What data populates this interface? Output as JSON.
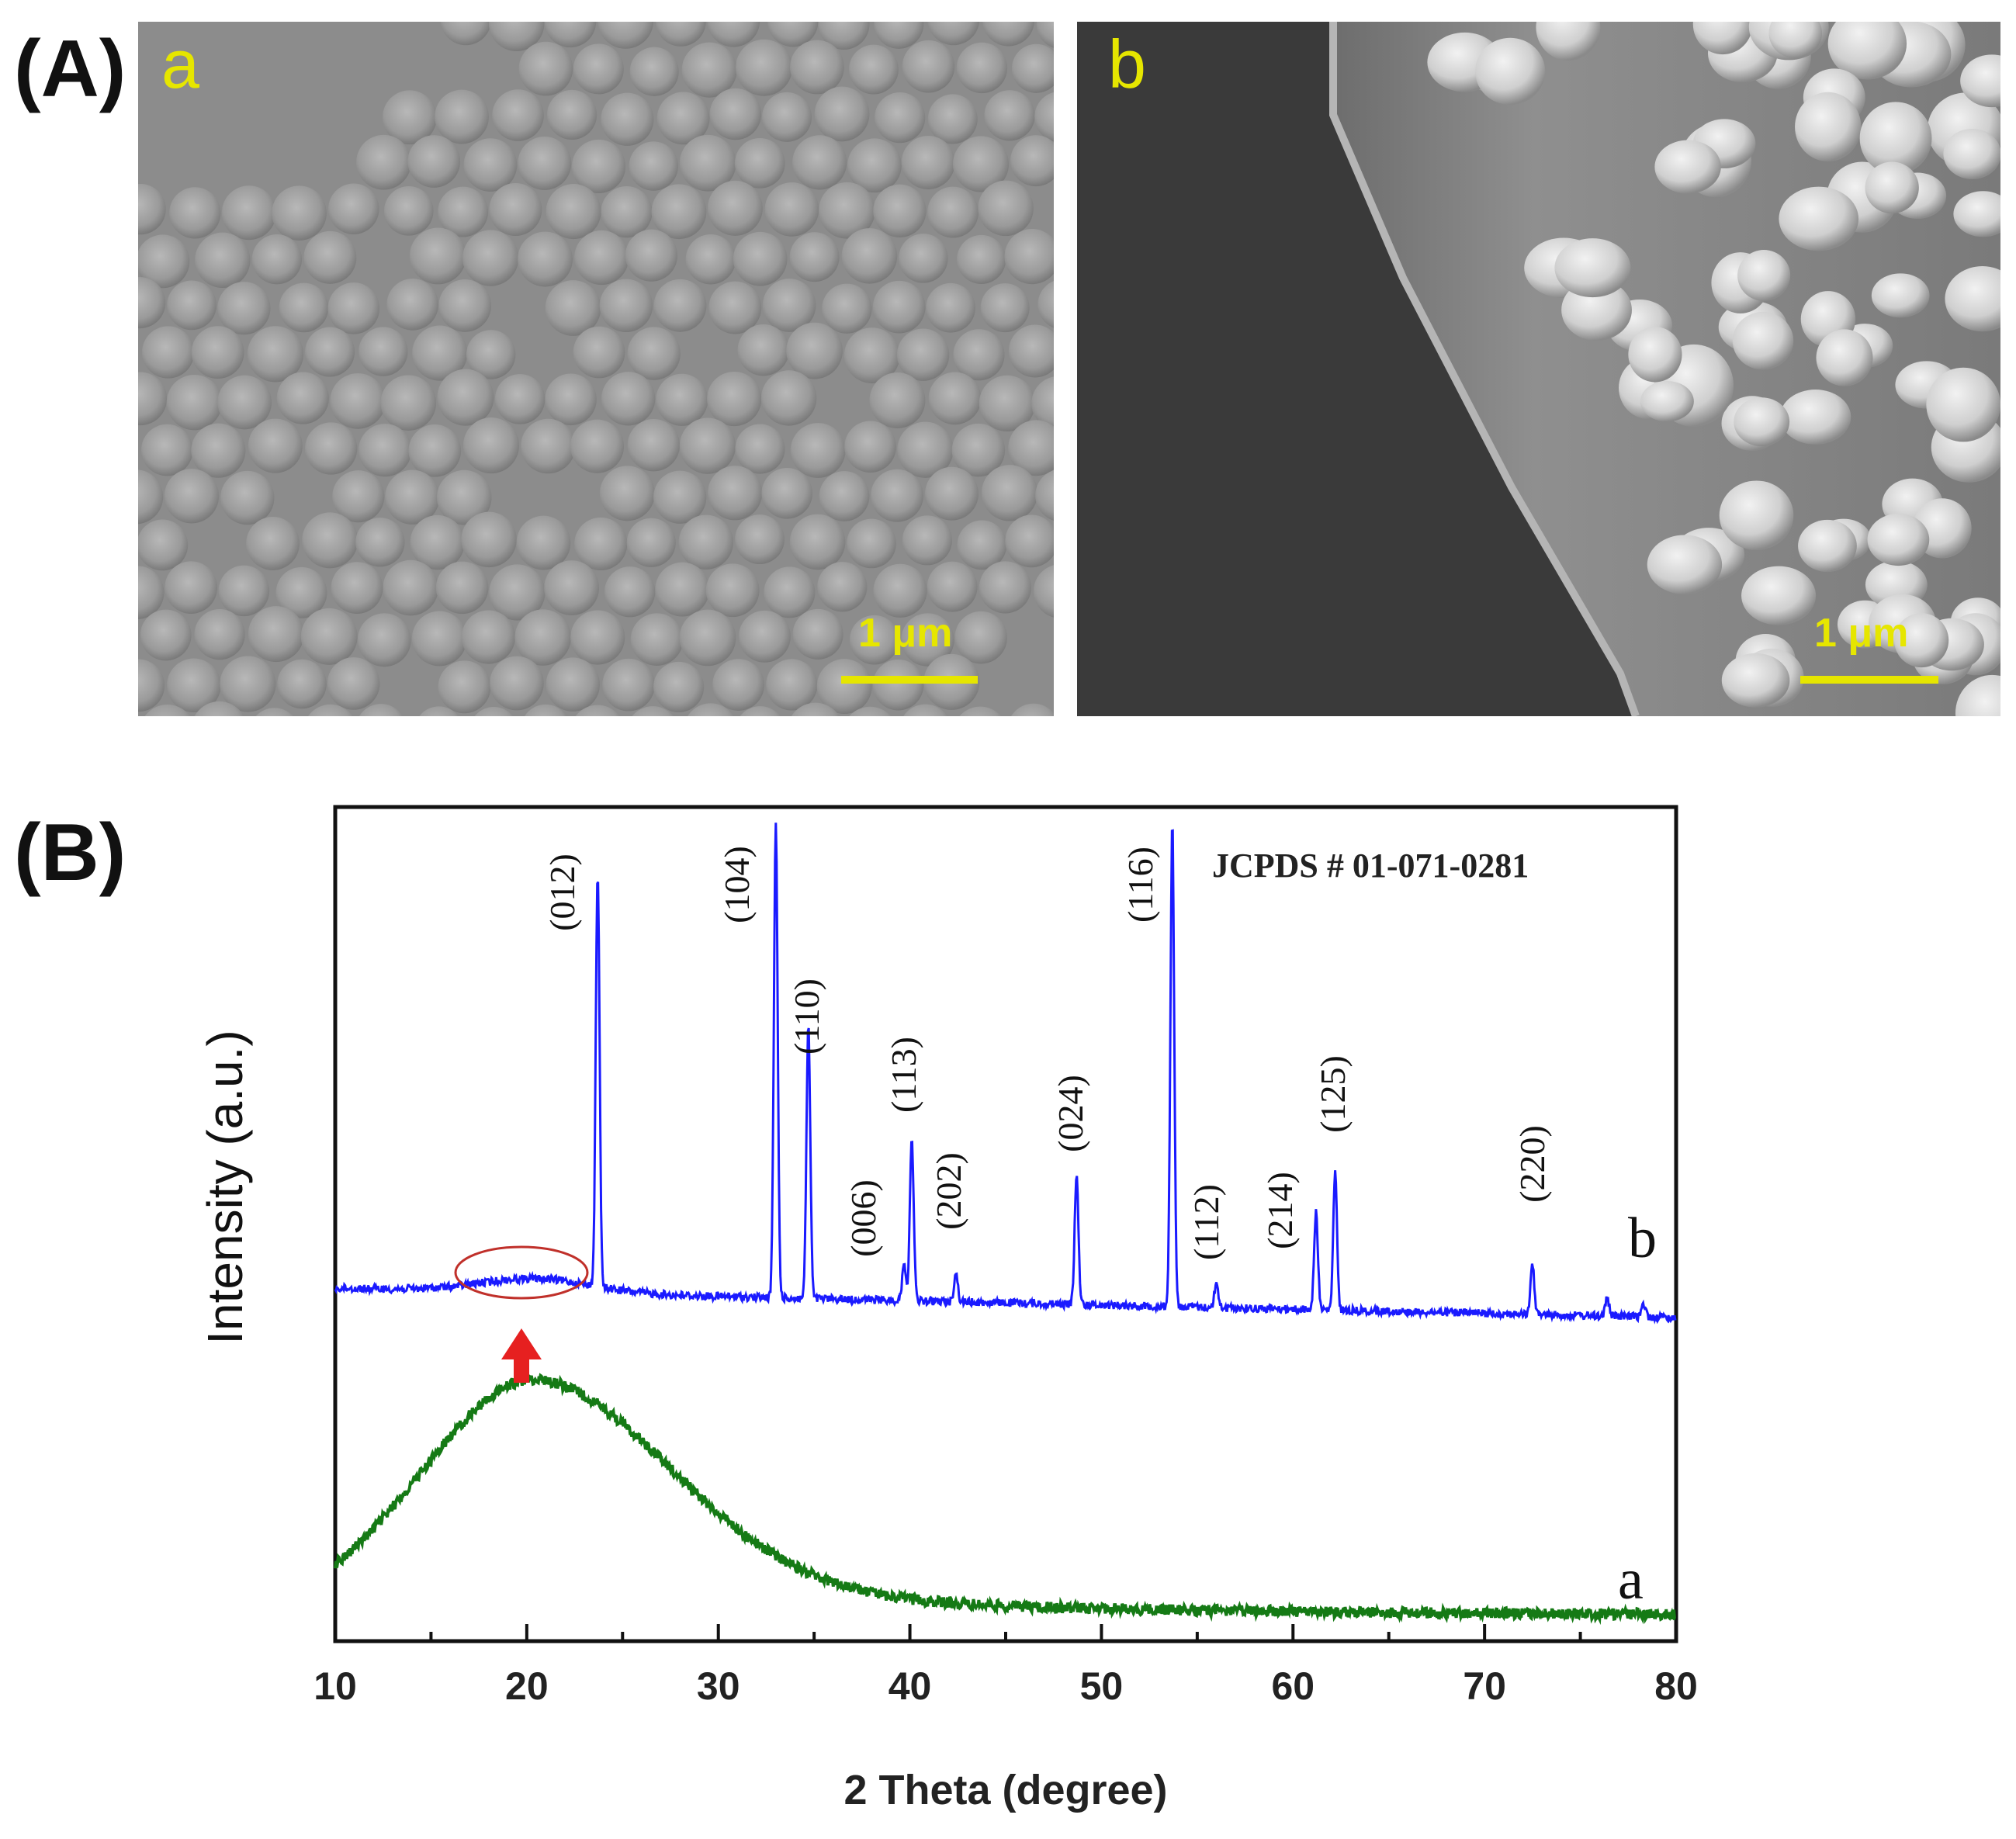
{
  "panels": {
    "A": {
      "label": "(A)",
      "images": [
        {
          "letter": "a",
          "scale_bar": "1 μm"
        },
        {
          "letter": "b",
          "scale_bar": "1 μm"
        }
      ]
    },
    "B": {
      "label": "(B)"
    }
  },
  "colors": {
    "series_b": "#1a1aff",
    "series_a": "#157a15",
    "arrow": "#e62020",
    "circle": "#c0302a",
    "scale": "#e6e600"
  },
  "chart_data": {
    "type": "line",
    "xlabel": "2 Theta (degree)",
    "ylabel": "Intensity (a.u.)",
    "xlim": [
      10,
      80
    ],
    "xticks": [
      "10",
      "20",
      "30",
      "40",
      "50",
      "60",
      "70",
      "80"
    ],
    "annotation": "JCPDS # 01-071-0281",
    "series": [
      {
        "name": "b",
        "description_peaks": [
          {
            "x": 23.7,
            "h": 0.88,
            "label": "(012)"
          },
          {
            "x": 33.0,
            "h": 1.0,
            "label": "(104)"
          },
          {
            "x": 34.7,
            "h": 0.58,
            "label": "(110)"
          },
          {
            "x": 39.7,
            "h": 0.08,
            "label": "(006)"
          },
          {
            "x": 40.1,
            "h": 0.34,
            "label": "(113)"
          },
          {
            "x": 42.4,
            "h": 0.06,
            "label": "(202)"
          },
          {
            "x": 48.7,
            "h": 0.27,
            "label": "(024)"
          },
          {
            "x": 53.7,
            "h": 1.0,
            "label": "(116)"
          },
          {
            "x": 56.0,
            "h": 0.05,
            "label": "(112)"
          },
          {
            "x": 61.2,
            "h": 0.2,
            "label": "(214)"
          },
          {
            "x": 62.2,
            "h": 0.28,
            "label": "(125)"
          },
          {
            "x": 72.5,
            "h": 0.1,
            "label": "(220)"
          }
        ]
      },
      {
        "name": "a",
        "broad_hump_center": 20.5
      }
    ]
  }
}
